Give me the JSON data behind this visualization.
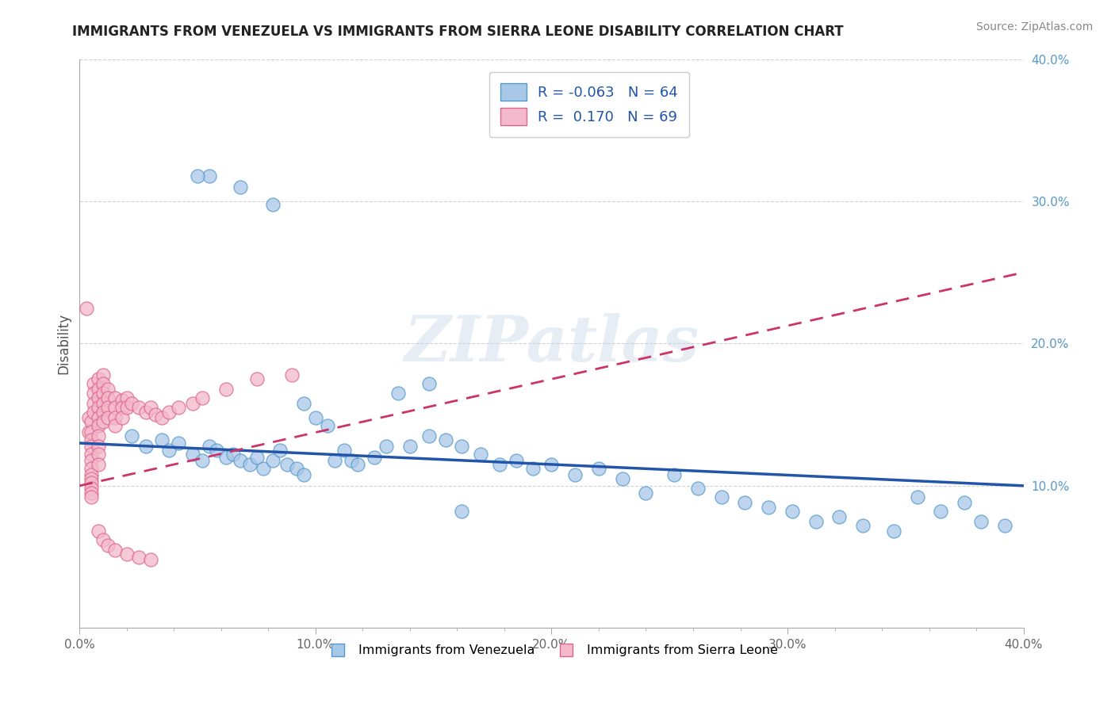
{
  "title": "IMMIGRANTS FROM VENEZUELA VS IMMIGRANTS FROM SIERRA LEONE DISABILITY CORRELATION CHART",
  "source": "Source: ZipAtlas.com",
  "ylabel": "Disability",
  "xlim": [
    0.0,
    0.4
  ],
  "ylim": [
    0.0,
    0.4
  ],
  "xtick_labels": [
    "0.0%",
    "",
    "",
    "",
    "",
    "10.0%",
    "",
    "",
    "",
    "",
    "20.0%",
    "",
    "",
    "",
    "",
    "30.0%",
    "",
    "",
    "",
    "",
    "40.0%"
  ],
  "xtick_values": [
    0.0,
    0.02,
    0.04,
    0.06,
    0.08,
    0.1,
    0.12,
    0.14,
    0.16,
    0.18,
    0.2,
    0.22,
    0.24,
    0.26,
    0.28,
    0.3,
    0.32,
    0.34,
    0.36,
    0.38,
    0.4
  ],
  "xtick_major_labels": [
    "0.0%",
    "10.0%",
    "20.0%",
    "30.0%",
    "40.0%"
  ],
  "xtick_major_values": [
    0.0,
    0.1,
    0.2,
    0.3,
    0.4
  ],
  "ytick_values": [
    0.0,
    0.1,
    0.2,
    0.3,
    0.4
  ],
  "right_ytick_labels": [
    "10.0%",
    "20.0%",
    "30.0%",
    "40.0%"
  ],
  "right_ytick_values": [
    0.1,
    0.2,
    0.3,
    0.4
  ],
  "venezuela_color": "#a8c8e8",
  "sierra_leone_color": "#f4b8cc",
  "venezuela_edge_color": "#5599cc",
  "sierra_leone_edge_color": "#dd6688",
  "trend_venezuela_color": "#2255aa",
  "trend_sierra_leone_color": "#cc3366",
  "R_venezuela": -0.063,
  "N_venezuela": 64,
  "R_sierra_leone": 0.17,
  "N_sierra_leone": 69,
  "watermark": "ZIPatlas",
  "legend_label_venezuela": "Immigrants from Venezuela",
  "legend_label_sierra_leone": "Immigrants from Sierra Leone",
  "venezuela_x": [
    0.022,
    0.028,
    0.035,
    0.038,
    0.042,
    0.048,
    0.052,
    0.055,
    0.058,
    0.062,
    0.065,
    0.068,
    0.072,
    0.075,
    0.078,
    0.082,
    0.085,
    0.088,
    0.092,
    0.095,
    0.1,
    0.105,
    0.108,
    0.112,
    0.115,
    0.118,
    0.125,
    0.13,
    0.135,
    0.14,
    0.148,
    0.155,
    0.162,
    0.17,
    0.178,
    0.185,
    0.192,
    0.2,
    0.21,
    0.22,
    0.23,
    0.24,
    0.252,
    0.262,
    0.272,
    0.282,
    0.292,
    0.302,
    0.312,
    0.322,
    0.332,
    0.345,
    0.055,
    0.068,
    0.082,
    0.095,
    0.148,
    0.162,
    0.355,
    0.365,
    0.375,
    0.382,
    0.392,
    0.05
  ],
  "venezuela_y": [
    0.135,
    0.128,
    0.132,
    0.125,
    0.13,
    0.122,
    0.118,
    0.128,
    0.125,
    0.12,
    0.122,
    0.118,
    0.115,
    0.12,
    0.112,
    0.118,
    0.125,
    0.115,
    0.112,
    0.108,
    0.148,
    0.142,
    0.118,
    0.125,
    0.118,
    0.115,
    0.12,
    0.128,
    0.165,
    0.128,
    0.135,
    0.132,
    0.128,
    0.122,
    0.115,
    0.118,
    0.112,
    0.115,
    0.108,
    0.112,
    0.105,
    0.095,
    0.108,
    0.098,
    0.092,
    0.088,
    0.085,
    0.082,
    0.075,
    0.078,
    0.072,
    0.068,
    0.318,
    0.31,
    0.298,
    0.158,
    0.172,
    0.082,
    0.092,
    0.082,
    0.088,
    0.075,
    0.072,
    0.318
  ],
  "sierra_leone_x": [
    0.003,
    0.004,
    0.004,
    0.005,
    0.005,
    0.005,
    0.005,
    0.005,
    0.005,
    0.005,
    0.005,
    0.005,
    0.005,
    0.005,
    0.005,
    0.005,
    0.006,
    0.006,
    0.006,
    0.006,
    0.008,
    0.008,
    0.008,
    0.008,
    0.008,
    0.008,
    0.008,
    0.008,
    0.008,
    0.008,
    0.01,
    0.01,
    0.01,
    0.01,
    0.01,
    0.01,
    0.012,
    0.012,
    0.012,
    0.012,
    0.015,
    0.015,
    0.015,
    0.015,
    0.018,
    0.018,
    0.018,
    0.02,
    0.02,
    0.022,
    0.025,
    0.028,
    0.03,
    0.032,
    0.035,
    0.038,
    0.042,
    0.048,
    0.052,
    0.062,
    0.075,
    0.09,
    0.008,
    0.01,
    0.012,
    0.015,
    0.02,
    0.025,
    0.03
  ],
  "sierra_leone_y": [
    0.225,
    0.138,
    0.148,
    0.145,
    0.138,
    0.132,
    0.128,
    0.122,
    0.118,
    0.112,
    0.108,
    0.105,
    0.102,
    0.098,
    0.095,
    0.092,
    0.172,
    0.165,
    0.158,
    0.152,
    0.175,
    0.168,
    0.162,
    0.155,
    0.148,
    0.142,
    0.135,
    0.128,
    0.122,
    0.115,
    0.178,
    0.172,
    0.165,
    0.158,
    0.152,
    0.145,
    0.168,
    0.162,
    0.155,
    0.148,
    0.162,
    0.155,
    0.148,
    0.142,
    0.16,
    0.155,
    0.148,
    0.162,
    0.155,
    0.158,
    0.155,
    0.152,
    0.155,
    0.15,
    0.148,
    0.152,
    0.155,
    0.158,
    0.162,
    0.168,
    0.175,
    0.178,
    0.068,
    0.062,
    0.058,
    0.055,
    0.052,
    0.05,
    0.048
  ]
}
